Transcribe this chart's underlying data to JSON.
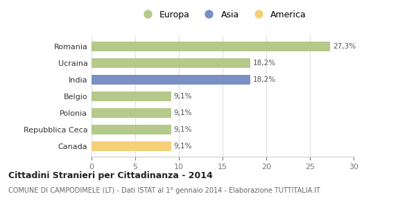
{
  "categories": [
    "Canada",
    "Repubblica Ceca",
    "Polonia",
    "Belgio",
    "India",
    "Ucraina",
    "Romania"
  ],
  "values": [
    9.1,
    9.1,
    9.1,
    9.1,
    18.2,
    18.2,
    27.3
  ],
  "labels": [
    "9,1%",
    "9,1%",
    "9,1%",
    "9,1%",
    "18,2%",
    "18,2%",
    "27,3%"
  ],
  "bar_colors": [
    "#f5cf7a",
    "#b5c98a",
    "#b5c98a",
    "#b5c98a",
    "#7a8fc4",
    "#b5c98a",
    "#b5c98a"
  ],
  "legend_items": [
    {
      "label": "Europa",
      "color": "#b5c98a"
    },
    {
      "label": "Asia",
      "color": "#7a8fc4"
    },
    {
      "label": "America",
      "color": "#f5cf7a"
    }
  ],
  "title": "Cittadini Stranieri per Cittadinanza - 2014",
  "subtitle": "COMUNE DI CAMPODIMELE (LT) - Dati ISTAT al 1° gennaio 2014 - Elaborazione TUTTITALIA.IT",
  "xlim": [
    0,
    30
  ],
  "xticks": [
    0,
    5,
    10,
    15,
    20,
    25,
    30
  ],
  "background_color": "#ffffff",
  "grid_color": "#e0e0e0"
}
